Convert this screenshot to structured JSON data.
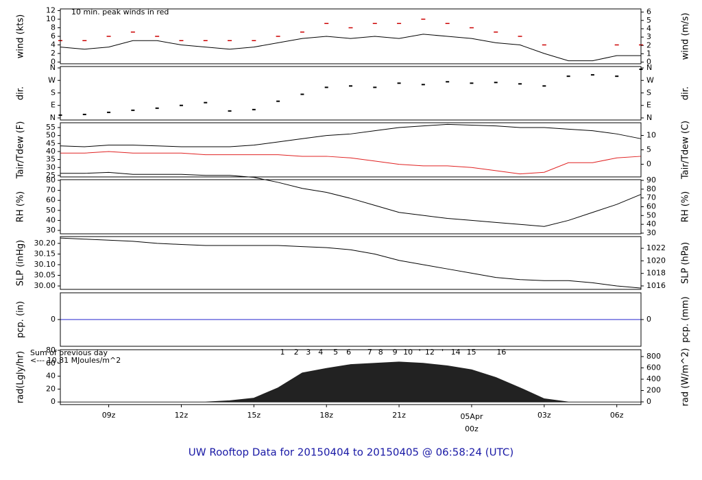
{
  "page_title": "UW Rooftop Data for 20150404  to  20150405 @ 06:58:24  (UTC)",
  "chart_data": [
    {
      "type": "line",
      "ylabel": "wind (kts)",
      "y2label": "wind (m/s)",
      "annotations": [
        {
          "text": "10 min. peak winds in red",
          "color": "#cc0000"
        }
      ],
      "x": [
        7,
        8,
        9,
        10,
        11,
        12,
        13,
        14,
        15,
        16,
        17,
        18,
        19,
        20,
        21,
        22,
        23,
        24,
        25,
        26,
        27,
        28,
        29,
        30,
        31
      ],
      "series": [
        {
          "name": "wind",
          "color": "#000000",
          "values": [
            3.5,
            3,
            3.5,
            5,
            5,
            4,
            3.5,
            3,
            3.5,
            4.5,
            5.5,
            6,
            5.5,
            6,
            5.5,
            6.5,
            6,
            5.5,
            4.5,
            4,
            2,
            0.3,
            0.3,
            1.5,
            1.5
          ]
        },
        {
          "name": "peak",
          "color": "#cc0000",
          "marker": "dash",
          "values": [
            5,
            5,
            6,
            7,
            6,
            5,
            5,
            5,
            5,
            6,
            7,
            9,
            8,
            9,
            9,
            10,
            9,
            8,
            7,
            6,
            4,
            null,
            null,
            4,
            4
          ]
        }
      ],
      "ylim": [
        -0.4,
        12.4
      ],
      "yticks": [
        0,
        2,
        4,
        6,
        8,
        10,
        12
      ],
      "y2lim": [
        -0.2,
        6.38
      ],
      "y2ticks": [
        0,
        1,
        2,
        3,
        4,
        5,
        6
      ]
    },
    {
      "type": "scatter",
      "ylabel": "dir.",
      "y2label": "dir.",
      "x": [
        7,
        8,
        9,
        10,
        11,
        12,
        13,
        14,
        15,
        16,
        17,
        18,
        19,
        20,
        21,
        22,
        23,
        24,
        25,
        26,
        27,
        28,
        29,
        30,
        31
      ],
      "series": [
        {
          "name": "dir",
          "color": "#000000",
          "values": [
            20,
            25,
            40,
            55,
            70,
            90,
            110,
            50,
            60,
            120,
            170,
            220,
            230,
            220,
            250,
            240,
            260,
            250,
            255,
            245,
            230,
            300,
            310,
            300,
            350
          ]
        }
      ],
      "ylim": [
        -15,
        370
      ],
      "yticks": [
        {
          "value": 0,
          "label": "N"
        },
        {
          "value": 90,
          "label": "E"
        },
        {
          "value": 180,
          "label": "S"
        },
        {
          "value": 270,
          "label": "W"
        },
        {
          "value": 360,
          "label": "N"
        }
      ],
      "y2lim": [
        -15,
        370
      ],
      "y2ticks": [
        {
          "value": 0,
          "label": "N"
        },
        {
          "value": 90,
          "label": "E"
        },
        {
          "value": 180,
          "label": "S"
        },
        {
          "value": 270,
          "label": "W"
        },
        {
          "value": 360,
          "label": "N"
        }
      ]
    },
    {
      "type": "line",
      "ylabel": "Tair/Tdew (F)",
      "y2label": "Tair/Tdew (C)",
      "x": [
        7,
        8,
        9,
        10,
        11,
        12,
        13,
        14,
        15,
        16,
        17,
        18,
        19,
        20,
        21,
        22,
        23,
        24,
        25,
        26,
        27,
        28,
        29,
        30,
        31
      ],
      "series": [
        {
          "name": "Tair",
          "color": "#000000",
          "values": [
            43.5,
            43,
            44,
            44,
            43.5,
            43,
            43,
            43,
            44,
            46,
            48,
            50,
            51,
            53,
            55,
            56,
            57,
            56.5,
            56,
            55,
            55,
            54,
            53,
            51,
            48
          ]
        },
        {
          "name": "Tdew",
          "color": "#e02020",
          "values": [
            39,
            39,
            40,
            39,
            39,
            39,
            38,
            38,
            38,
            38,
            37,
            37,
            36,
            34,
            32,
            31,
            31,
            30,
            28,
            26,
            27,
            33,
            33,
            36,
            37
          ]
        }
      ],
      "ylim": [
        24.1,
        58
      ],
      "yticks": [
        25,
        30,
        35,
        40,
        45,
        50,
        55
      ],
      "y2lim": [
        -4.4,
        14.4
      ],
      "y2ticks": [
        0,
        5,
        10
      ]
    },
    {
      "type": "line",
      "ylabel": "RH (%)",
      "y2label": "RH (%)",
      "x": [
        7,
        8,
        9,
        10,
        11,
        12,
        13,
        14,
        15,
        16,
        17,
        18,
        19,
        20,
        21,
        22,
        23,
        24,
        25,
        26,
        27,
        28,
        29,
        30,
        31
      ],
      "series": [
        {
          "name": "RH",
          "color": "#000000",
          "values": [
            87,
            87,
            88,
            86,
            86,
            86,
            85,
            85,
            83,
            78,
            72,
            68,
            62,
            55,
            48,
            45,
            42,
            40,
            38,
            36,
            34,
            40,
            48,
            56,
            66
          ]
        }
      ],
      "ylim": [
        26.6,
        80.7
      ],
      "yticks": [
        30,
        40,
        50,
        60,
        70,
        80
      ],
      "y2lim": [
        29.2,
        90.8
      ],
      "y2ticks": [
        30,
        40,
        50,
        60,
        70,
        80,
        90
      ]
    },
    {
      "type": "line",
      "ylabel": "SLP (inHg)",
      "y2label": "SLP (hPa)",
      "x": [
        7,
        8,
        9,
        10,
        11,
        12,
        13,
        14,
        15,
        16,
        17,
        18,
        19,
        20,
        21,
        22,
        23,
        24,
        25,
        26,
        27,
        28,
        29,
        30,
        31
      ],
      "series": [
        {
          "name": "SLP",
          "color": "#000000",
          "values": [
            30.225,
            30.22,
            30.215,
            30.21,
            30.2,
            30.195,
            30.19,
            30.19,
            30.19,
            30.19,
            30.185,
            30.18,
            30.17,
            30.15,
            30.12,
            30.1,
            30.08,
            30.06,
            30.04,
            30.03,
            30.025,
            30.025,
            30.015,
            30.0,
            29.99
          ]
        }
      ],
      "ylim": [
        29.984,
        30.232
      ],
      "yticks": [
        {
          "value": 30.0,
          "label": "30.00"
        },
        {
          "value": 30.05,
          "label": "30.05"
        },
        {
          "value": 30.1,
          "label": "30.10"
        },
        {
          "value": 30.15,
          "label": "30.15"
        },
        {
          "value": 30.2,
          "label": "30.20"
        }
      ],
      "y2lim": [
        1015.45,
        1023.87
      ],
      "y2ticks": [
        1016,
        1018,
        1020,
        1022
      ]
    },
    {
      "type": "line",
      "ylabel": "pcp. (in)",
      "y2label": "pcp. (mm)",
      "x": [
        7,
        8,
        9,
        10,
        11,
        12,
        13,
        14,
        15,
        16,
        17,
        18,
        19,
        20,
        21,
        22,
        23,
        24,
        25,
        26,
        27,
        28,
        29,
        30,
        31
      ],
      "series": [
        {
          "name": "pcp",
          "color": "#2020cc",
          "values": [
            0,
            0,
            0,
            0,
            0,
            0,
            0,
            0,
            0,
            0,
            0,
            0,
            0,
            0,
            0,
            0,
            0,
            0,
            0,
            0,
            0,
            0,
            0,
            0,
            0
          ]
        }
      ],
      "ylim": [
        -1,
        1
      ],
      "yticks": [
        0
      ],
      "y2lim": [
        -1,
        1
      ],
      "y2ticks": [
        0
      ]
    },
    {
      "type": "area",
      "ylabel": "rad(Lgly/hr)",
      "y2label": "rad (W/m^2)",
      "annotations": [
        {
          "text": "Sum of previous day",
          "color": "#8a2be2"
        },
        {
          "text": "<--- 10.81 MJoules/m^2",
          "color": "#8a2be2"
        }
      ],
      "markers": [
        {
          "label": "1",
          "x": 16.18
        },
        {
          "label": "2",
          "x": 16.75
        },
        {
          "label": "3",
          "x": 17.25
        },
        {
          "label": "4",
          "x": 17.76
        },
        {
          "label": "5",
          "x": 18.38
        },
        {
          "label": "6",
          "x": 18.92
        },
        {
          "label": "7",
          "x": 19.79
        },
        {
          "label": "8",
          "x": 20.24
        },
        {
          "label": "9",
          "x": 20.83
        },
        {
          "label": "10",
          "x": 21.37
        },
        {
          "label": "'",
          "x": 21.85
        },
        {
          "label": "12",
          "x": 22.27
        },
        {
          "label": "'",
          "x": 22.8
        },
        {
          "label": "14",
          "x": 23.34
        },
        {
          "label": "15",
          "x": 23.99
        },
        {
          "label": "16",
          "x": 25.23
        }
      ],
      "marker_color": "#8a2be2",
      "x": [
        7,
        8,
        9,
        10,
        11,
        12,
        13,
        14,
        15,
        16,
        17,
        18,
        19,
        20,
        21,
        22,
        23,
        24,
        25,
        26,
        27,
        28,
        29,
        30,
        31
      ],
      "series": [
        {
          "name": "rad",
          "color": "#222222",
          "values": [
            0,
            0,
            0,
            0,
            0,
            0,
            0,
            2,
            6,
            22,
            45,
            52,
            58,
            60,
            62,
            60,
            56,
            50,
            38,
            22,
            5,
            0,
            0,
            0,
            0
          ]
        }
      ],
      "ylim": [
        -4,
        81
      ],
      "yticks": [
        0,
        20,
        40,
        60,
        80
      ],
      "y2lim": [
        -48,
        921
      ],
      "y2ticks": [
        0,
        200,
        400,
        600,
        800
      ],
      "xlim": [
        7,
        31
      ],
      "xticks": [
        {
          "value": 9,
          "label": "09z"
        },
        {
          "value": 12,
          "label": "12z"
        },
        {
          "value": 15,
          "label": "15z"
        },
        {
          "value": 18,
          "label": "18z"
        },
        {
          "value": 21,
          "label": "21z"
        },
        {
          "value": 24,
          "label": "00z"
        },
        {
          "value": 27,
          "label": "03z"
        },
        {
          "value": 30,
          "label": "06z"
        }
      ],
      "date_label": {
        "text": "05Apr",
        "x": 24,
        "color": "#cc0000"
      }
    }
  ]
}
